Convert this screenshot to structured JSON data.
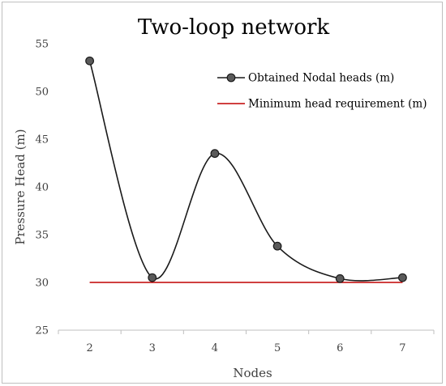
{
  "chart_data": {
    "type": "line",
    "title": "Two-loop network",
    "xlabel": "Nodes",
    "ylabel": "Pressure Head (m)",
    "categories": [
      "2",
      "3",
      "4",
      "5",
      "6",
      "7"
    ],
    "ylim": [
      25,
      55
    ],
    "yticks": [
      25,
      30,
      35,
      40,
      45,
      50,
      55
    ],
    "grid": false,
    "legend_position": "top-right",
    "series": [
      {
        "name": "Obtained Nodal heads (m)",
        "values": [
          53.2,
          30.5,
          43.5,
          33.8,
          30.4,
          30.5
        ],
        "color": "#1a1a1a",
        "marker_color": "#5a5a5a",
        "smooth": true
      },
      {
        "name": "Minimum head requirement (m)",
        "values": [
          30,
          30,
          30,
          30,
          30,
          30
        ],
        "color": "#c00000",
        "smooth": false
      }
    ]
  }
}
